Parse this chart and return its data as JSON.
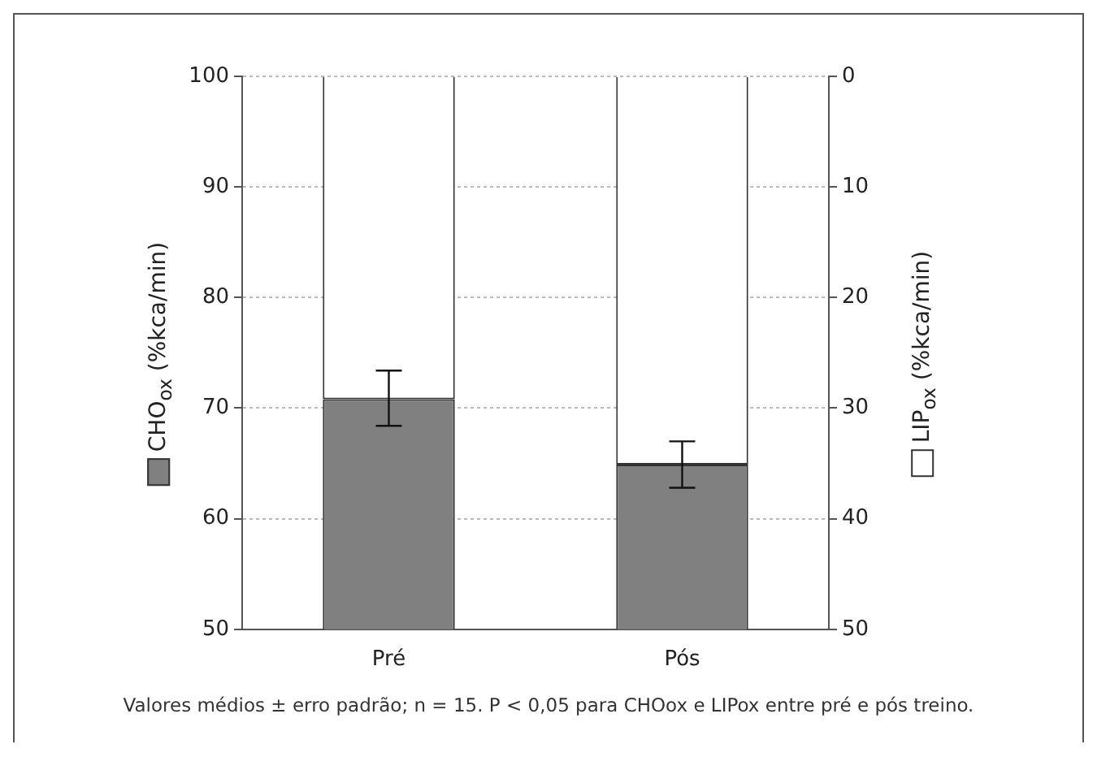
{
  "chart_data": {
    "type": "bar",
    "categories": [
      "Pré",
      "Pós"
    ],
    "ylabel": "CHO$_{ox}$ (%kca/min)",
    "y2label": "LIP$_{ox}$ (%kca/min)",
    "ylim": [
      50,
      100
    ],
    "yticks": [
      50,
      60,
      70,
      80,
      90,
      100
    ],
    "y2lim": [
      50,
      0
    ],
    "y2ticks": [
      0,
      10,
      20,
      30,
      40,
      50
    ],
    "grid": "y",
    "stacked": true,
    "annotations": [
      "Valores médios ± erro padrão; n = 15. P < 0,05 para CHOox e LIPox entre pré e pós treino."
    ],
    "series": [
      {
        "color": "#808080",
        "values": [
          70.8,
          64.9
        ],
        "errors": [
          [
            68.4,
            73.4
          ],
          [
            62.8,
            67.0
          ]
        ]
      },
      {
        "color": "#ffffff",
        "axis": "y2",
        "values": [
          29.2,
          35.1
        ]
      }
    ]
  }
}
